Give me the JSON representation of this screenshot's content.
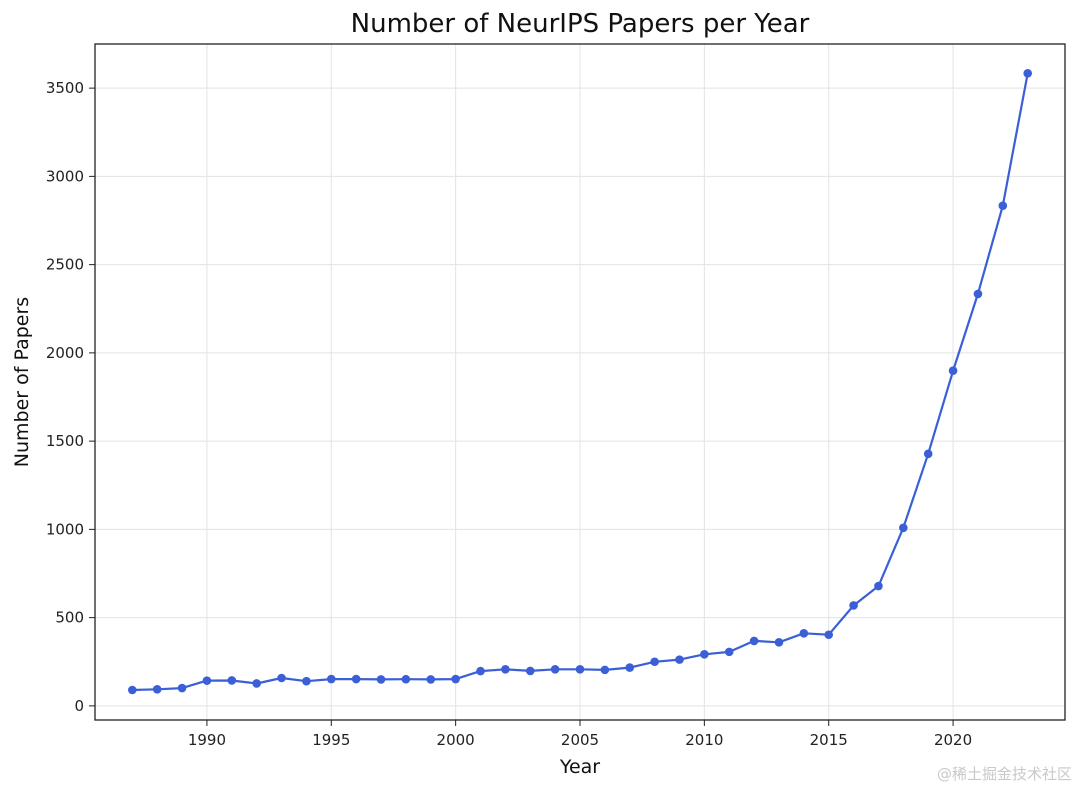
{
  "chart_data": {
    "type": "line",
    "title": "Number of NeurIPS Papers per Year",
    "xlabel": "Year",
    "ylabel": "Number of Papers",
    "xlim": [
      1985.5,
      2024.5
    ],
    "ylim": [
      -80,
      3750
    ],
    "xticks": [
      1990,
      1995,
      2000,
      2005,
      2010,
      2015,
      2020
    ],
    "yticks": [
      0,
      500,
      1000,
      1500,
      2000,
      2500,
      3000,
      3500
    ],
    "grid": true,
    "color": "#3a5fd6",
    "series": [
      {
        "x": [
          1987,
          1988,
          1989,
          1990,
          1991,
          1992,
          1993,
          1994,
          1995,
          1996,
          1997,
          1998,
          1999,
          2000,
          2001,
          2002,
          2003,
          2004,
          2005,
          2006,
          2007,
          2008,
          2009,
          2010,
          2011,
          2012,
          2013,
          2014,
          2015,
          2016,
          2017,
          2018,
          2019,
          2020,
          2021,
          2022,
          2023
        ],
        "values": [
          90,
          94,
          101,
          143,
          144,
          127,
          158,
          140,
          152,
          152,
          150,
          151,
          150,
          152,
          197,
          207,
          198,
          207,
          207,
          204,
          217,
          250,
          262,
          292,
          306,
          368,
          360,
          411,
          403,
          569,
          679,
          1009,
          1428,
          1899,
          2334,
          2834,
          3584
        ]
      }
    ]
  },
  "watermark": "@稀土掘金技术社区"
}
